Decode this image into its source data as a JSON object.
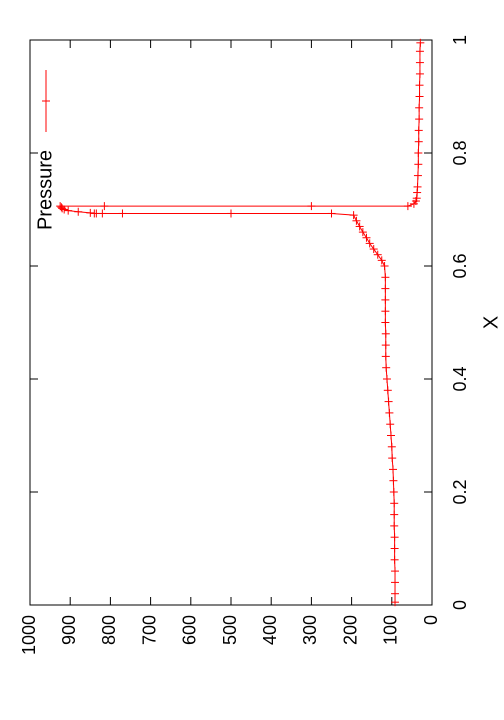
{
  "chart_data": {
    "type": "line",
    "orientation": "rotated-90-ccw",
    "title": "",
    "xlabel": "X",
    "ylabel": "",
    "xlim": [
      0,
      1
    ],
    "ylim": [
      0,
      1000
    ],
    "x_ticks": [
      "0",
      "0.2",
      "0.4",
      "0.6",
      "0.8",
      "1"
    ],
    "y_ticks": [
      "0",
      "100",
      "200",
      "300",
      "400",
      "500",
      "600",
      "700",
      "800",
      "900",
      "1000"
    ],
    "grid": false,
    "legend": {
      "placement": "top-right",
      "entries": [
        "Pressure"
      ]
    },
    "colors": {
      "series": "#ff0000",
      "axes": "#000000",
      "background": "#ffffff"
    },
    "series": [
      {
        "name": "Pressure",
        "marker": "plus",
        "x": [
          0.005,
          0.02,
          0.04,
          0.06,
          0.08,
          0.1,
          0.12,
          0.14,
          0.16,
          0.18,
          0.2,
          0.22,
          0.24,
          0.26,
          0.28,
          0.3,
          0.32,
          0.34,
          0.36,
          0.38,
          0.4,
          0.42,
          0.44,
          0.46,
          0.48,
          0.5,
          0.52,
          0.54,
          0.56,
          0.58,
          0.6,
          0.61,
          0.62,
          0.63,
          0.64,
          0.65,
          0.66,
          0.67,
          0.68,
          0.69,
          0.693,
          0.693,
          0.693,
          0.693,
          0.693,
          0.693,
          0.694,
          0.696,
          0.698,
          0.7,
          0.702,
          0.704,
          0.706,
          0.706,
          0.706,
          0.706,
          0.71,
          0.715,
          0.72,
          0.73,
          0.74,
          0.76,
          0.78,
          0.8,
          0.82,
          0.84,
          0.86,
          0.88,
          0.9,
          0.92,
          0.94,
          0.96,
          0.98,
          0.995
        ],
        "values": [
          92,
          92,
          92,
          92,
          93,
          93,
          93,
          94,
          94,
          94,
          95,
          96,
          97,
          99,
          100,
          102,
          104,
          106,
          108,
          110,
          112,
          114,
          115,
          115,
          115,
          116,
          116,
          116,
          116,
          116,
          118,
          125,
          135,
          145,
          155,
          163,
          172,
          180,
          188,
          195,
          250,
          500,
          770,
          820,
          835,
          840,
          850,
          880,
          905,
          915,
          920,
          922,
          925,
          815,
          300,
          60,
          45,
          40,
          38,
          37,
          36,
          35,
          34,
          34,
          33,
          33,
          32,
          32,
          31,
          31,
          30,
          30,
          30,
          29
        ]
      }
    ]
  }
}
